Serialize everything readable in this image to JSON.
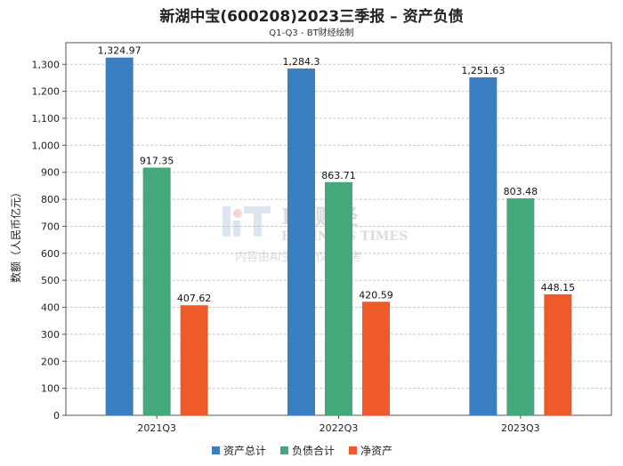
{
  "chart_data": {
    "type": "bar",
    "title": "新湖中宝(600208)2023三季报 – 资产负债",
    "subtitle": "Q1-Q3 - BT财经绘制",
    "ylabel": "数额（人民币亿元）",
    "xlabel": "",
    "categories": [
      "2021Q3",
      "2022Q3",
      "2023Q3"
    ],
    "series": [
      {
        "name": "资产总计",
        "color": "#3a7fc1",
        "values": [
          1324.97,
          1284.3,
          1251.63
        ],
        "labels": [
          "1,324.97",
          "1,284.3",
          "1,251.63"
        ]
      },
      {
        "name": "负债合计",
        "color": "#45a87a",
        "values": [
          917.35,
          863.71,
          803.48
        ],
        "labels": [
          "917.35",
          "863.71",
          "803.48"
        ]
      },
      {
        "name": "净资产",
        "color": "#ee5a2a",
        "values": [
          407.62,
          420.59,
          448.15
        ],
        "labels": [
          "407.62",
          "420.59",
          "448.15"
        ]
      }
    ],
    "ylim": [
      0,
      1380
    ],
    "yticks": [
      0,
      100,
      200,
      300,
      400,
      500,
      600,
      700,
      800,
      900,
      1000,
      1100,
      1200,
      1300
    ],
    "ytick_labels": [
      "0",
      "100",
      "200",
      "300",
      "400",
      "500",
      "600",
      "700",
      "800",
      "900",
      "1,000",
      "1,100",
      "1,200",
      "1,300"
    ],
    "grid": true,
    "legend_position": "bottom"
  },
  "watermark": {
    "brand": "BT财经",
    "line2": "BUSINESS TIMES",
    "line3": "内容由AI生成，仅供参考"
  }
}
